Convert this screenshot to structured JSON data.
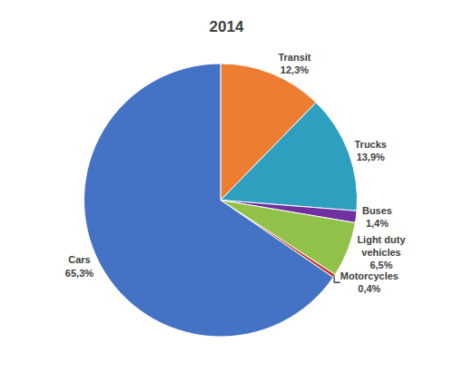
{
  "chart_data": {
    "type": "pie",
    "title": "2014",
    "categories": [
      "Transit",
      "Trucks",
      "Buses",
      "Light duty\nvehicles",
      "Motorcycles",
      "Cars"
    ],
    "values": [
      12.3,
      13.9,
      1.4,
      6.5,
      0.4,
      65.3
    ],
    "value_labels": [
      "12,3%",
      "13,9%",
      "1,4%",
      "6,5%",
      "0,4%",
      "65,3%"
    ],
    "colors": [
      "#ED7D31",
      "#2E9FBF",
      "#7030A0",
      "#92C14A",
      "#C0392B",
      "#4472C4"
    ],
    "data_labels": true
  }
}
